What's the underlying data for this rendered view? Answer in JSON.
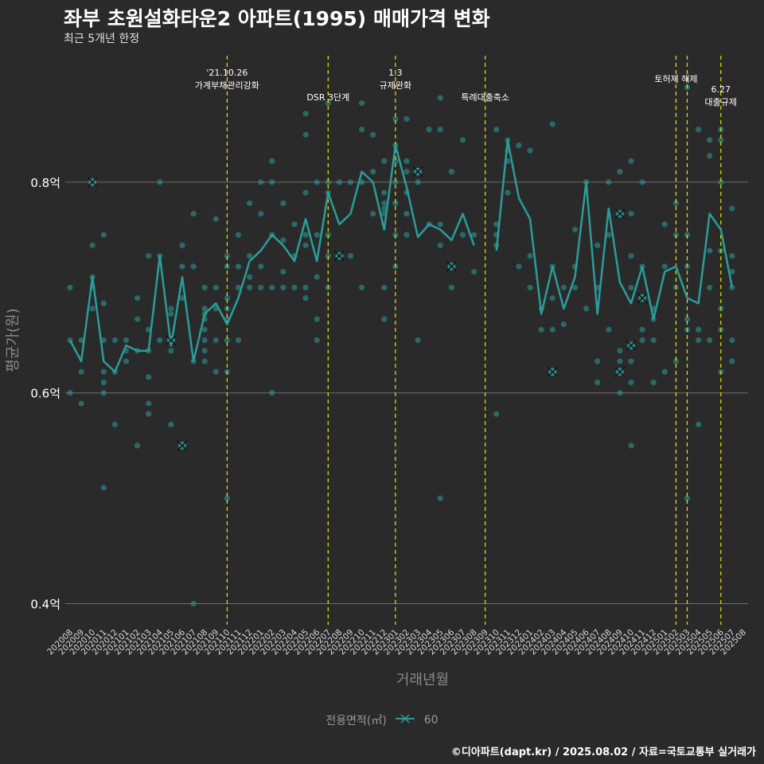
{
  "title": "좌부 초원설화타운2 아파트(1995) 매매가격 변화",
  "subtitle": "최근 5개년 한정",
  "caption": "©디아파트(dapt.kr) / 2025.08.02 / 자료=국토교통부 실거래가",
  "legend": {
    "title": "전용면적(㎡)",
    "label": "60"
  },
  "colors": {
    "series": "#2a9d99",
    "event_line": "#e8e600",
    "grid": "#6e6e6e",
    "background": "#2b2a2b"
  },
  "chart_data": {
    "type": "line",
    "title": "좌부 초원설화타운2 아파트(1995) 매매가격 변화",
    "subtitle": "최근 5개년 한정",
    "xlabel": "거래년월",
    "ylabel": "평균가(원)",
    "ylim": [
      0.38,
      0.92
    ],
    "yticks": [
      0.4,
      0.6,
      0.8
    ],
    "ytick_labels": [
      "0.4억",
      "0.6억",
      "0.8억"
    ],
    "grid": true,
    "legend_position": "bottom",
    "categories": [
      "202008",
      "202009",
      "202010",
      "202011",
      "202012",
      "202101",
      "202102",
      "202103",
      "202104",
      "202105",
      "202106",
      "202107",
      "202108",
      "202109",
      "202110",
      "202111",
      "202112",
      "202201",
      "202202",
      "202203",
      "202204",
      "202205",
      "202206",
      "202207",
      "202208",
      "202209",
      "202210",
      "202211",
      "202212",
      "202301",
      "202302",
      "202303",
      "202304",
      "202305",
      "202306",
      "202307",
      "202308",
      "202309",
      "202310",
      "202311",
      "202312",
      "202401",
      "202402",
      "202403",
      "202404",
      "202405",
      "202406",
      "202407",
      "202408",
      "202409",
      "202410",
      "202411",
      "202412",
      "202501",
      "202502",
      "202503",
      "202504",
      "202505",
      "202506",
      "202507",
      "202508"
    ],
    "series": [
      {
        "name": "60",
        "x": [
          "202008",
          "202009",
          "202010",
          "202011",
          "202012",
          "202101",
          "202102",
          "202103",
          "202104",
          "202105",
          "202106",
          "202107",
          "202108",
          "202109",
          "202110",
          "202111",
          "202112",
          "202201",
          "202202",
          "202203",
          "202204",
          "202205",
          "202206",
          "202207",
          "202208",
          "202209",
          "202210",
          "202211",
          "202212",
          "202301",
          "202302",
          "202303",
          "202304",
          "202305",
          "202306",
          "202307",
          "202308",
          "202310",
          "202311",
          "202312",
          "202401",
          "202402",
          "202403",
          "202404",
          "202405",
          "202406",
          "202407",
          "202408",
          "202409",
          "202410",
          "202411",
          "202412",
          "202501",
          "202502",
          "202503",
          "202504",
          "202505",
          "202506",
          "202507"
        ],
        "values": [
          0.65,
          0.63,
          0.71,
          0.63,
          0.62,
          0.645,
          0.64,
          0.64,
          0.73,
          0.645,
          0.71,
          0.63,
          0.675,
          0.685,
          0.665,
          0.69,
          0.725,
          0.735,
          0.75,
          0.74,
          0.725,
          0.765,
          0.725,
          0.79,
          0.76,
          0.77,
          0.81,
          0.8,
          0.755,
          0.835,
          0.795,
          0.748,
          0.76,
          0.755,
          0.745,
          0.77,
          0.74,
          0.735,
          0.84,
          0.785,
          0.765,
          0.675,
          0.72,
          0.68,
          0.71,
          0.8,
          0.675,
          0.775,
          0.705,
          0.685,
          0.72,
          0.67,
          0.715,
          0.72,
          0.69,
          0.685,
          0.77,
          0.755,
          0.7
        ]
      }
    ],
    "points": [
      [
        "202008",
        0.7
      ],
      [
        "202008",
        0.65
      ],
      [
        "202008",
        0.6
      ],
      [
        "202009",
        0.65
      ],
      [
        "202009",
        0.59
      ],
      [
        "202009",
        0.62
      ],
      [
        "202010",
        0.8
      ],
      [
        "202010",
        0.74
      ],
      [
        "202010",
        0.7
      ],
      [
        "202010",
        0.68
      ],
      [
        "202010",
        0.71
      ],
      [
        "202011",
        0.75
      ],
      [
        "202011",
        0.685
      ],
      [
        "202011",
        0.65
      ],
      [
        "202011",
        0.62
      ],
      [
        "202011",
        0.61
      ],
      [
        "202011",
        0.6
      ],
      [
        "202011",
        0.51
      ],
      [
        "202012",
        0.65
      ],
      [
        "202012",
        0.62
      ],
      [
        "202012",
        0.57
      ],
      [
        "202101",
        0.65
      ],
      [
        "202101",
        0.64
      ],
      [
        "202101",
        0.63
      ],
      [
        "202102",
        0.69
      ],
      [
        "202102",
        0.67
      ],
      [
        "202102",
        0.64
      ],
      [
        "202102",
        0.55
      ],
      [
        "202103",
        0.73
      ],
      [
        "202103",
        0.66
      ],
      [
        "202103",
        0.64
      ],
      [
        "202103",
        0.615
      ],
      [
        "202103",
        0.59
      ],
      [
        "202103",
        0.58
      ],
      [
        "202104",
        0.8
      ],
      [
        "202104",
        0.73
      ],
      [
        "202104",
        0.65
      ],
      [
        "202105",
        0.68
      ],
      [
        "202105",
        0.675
      ],
      [
        "202105",
        0.65
      ],
      [
        "202105",
        0.64
      ],
      [
        "202105",
        0.57
      ],
      [
        "202106",
        0.74
      ],
      [
        "202106",
        0.72
      ],
      [
        "202106",
        0.69
      ],
      [
        "202106",
        0.55
      ],
      [
        "202107",
        0.77
      ],
      [
        "202107",
        0.72
      ],
      [
        "202107",
        0.63
      ],
      [
        "202107",
        0.4
      ],
      [
        "202108",
        0.7
      ],
      [
        "202108",
        0.68
      ],
      [
        "202108",
        0.675
      ],
      [
        "202108",
        0.67
      ],
      [
        "202108",
        0.66
      ],
      [
        "202108",
        0.65
      ],
      [
        "202108",
        0.64
      ],
      [
        "202108",
        0.63
      ],
      [
        "202109",
        0.765
      ],
      [
        "202109",
        0.7
      ],
      [
        "202109",
        0.68
      ],
      [
        "202109",
        0.65
      ],
      [
        "202109",
        0.62
      ],
      [
        "202110",
        0.73
      ],
      [
        "202110",
        0.72
      ],
      [
        "202110",
        0.69
      ],
      [
        "202110",
        0.68
      ],
      [
        "202110",
        0.67
      ],
      [
        "202110",
        0.65
      ],
      [
        "202110",
        0.62
      ],
      [
        "202110",
        0.5
      ],
      [
        "202111",
        0.75
      ],
      [
        "202111",
        0.72
      ],
      [
        "202111",
        0.7
      ],
      [
        "202111",
        0.65
      ],
      [
        "202112",
        0.78
      ],
      [
        "202112",
        0.73
      ],
      [
        "202112",
        0.71
      ],
      [
        "202112",
        0.7
      ],
      [
        "202201",
        0.8
      ],
      [
        "202201",
        0.77
      ],
      [
        "202201",
        0.72
      ],
      [
        "202201",
        0.7
      ],
      [
        "202202",
        0.82
      ],
      [
        "202202",
        0.8
      ],
      [
        "202202",
        0.75
      ],
      [
        "202202",
        0.7
      ],
      [
        "202202",
        0.6
      ],
      [
        "202203",
        0.78
      ],
      [
        "202203",
        0.745
      ],
      [
        "202203",
        0.715
      ],
      [
        "202203",
        0.7
      ],
      [
        "202204",
        0.76
      ],
      [
        "202204",
        0.73
      ],
      [
        "202204",
        0.7
      ],
      [
        "202205",
        0.865
      ],
      [
        "202205",
        0.845
      ],
      [
        "202205",
        0.79
      ],
      [
        "202205",
        0.75
      ],
      [
        "202205",
        0.74
      ],
      [
        "202205",
        0.7
      ],
      [
        "202205",
        0.69
      ],
      [
        "202206",
        0.8
      ],
      [
        "202206",
        0.75
      ],
      [
        "202206",
        0.71
      ],
      [
        "202206",
        0.67
      ],
      [
        "202206",
        0.65
      ],
      [
        "202207",
        0.875
      ],
      [
        "202207",
        0.8
      ],
      [
        "202207",
        0.79
      ],
      [
        "202207",
        0.75
      ],
      [
        "202207",
        0.73
      ],
      [
        "202207",
        0.7
      ],
      [
        "202208",
        0.8
      ],
      [
        "202208",
        0.73
      ],
      [
        "202209",
        0.8
      ],
      [
        "202209",
        0.73
      ],
      [
        "202210",
        0.875
      ],
      [
        "202210",
        0.85
      ],
      [
        "202210",
        0.8
      ],
      [
        "202210",
        0.7
      ],
      [
        "202211",
        0.845
      ],
      [
        "202211",
        0.81
      ],
      [
        "202211",
        0.77
      ],
      [
        "202212",
        0.82
      ],
      [
        "202212",
        0.79
      ],
      [
        "202212",
        0.78
      ],
      [
        "202212",
        0.775
      ],
      [
        "202212",
        0.77
      ],
      [
        "202212",
        0.7
      ],
      [
        "202212",
        0.67
      ],
      [
        "202301",
        0.86
      ],
      [
        "202301",
        0.835
      ],
      [
        "202301",
        0.82
      ],
      [
        "202301",
        0.8
      ],
      [
        "202301",
        0.78
      ],
      [
        "202301",
        0.75
      ],
      [
        "202301",
        0.72
      ],
      [
        "202302",
        0.86
      ],
      [
        "202302",
        0.82
      ],
      [
        "202302",
        0.81
      ],
      [
        "202302",
        0.79
      ],
      [
        "202302",
        0.77
      ],
      [
        "202302",
        0.75
      ],
      [
        "202303",
        0.81
      ],
      [
        "202303",
        0.8
      ],
      [
        "202303",
        0.65
      ],
      [
        "202304",
        0.85
      ],
      [
        "202304",
        0.76
      ],
      [
        "202305",
        0.88
      ],
      [
        "202305",
        0.85
      ],
      [
        "202305",
        0.76
      ],
      [
        "202305",
        0.74
      ],
      [
        "202305",
        0.5
      ],
      [
        "202306",
        0.81
      ],
      [
        "202306",
        0.72
      ],
      [
        "202306",
        0.7
      ],
      [
        "202307",
        0.84
      ],
      [
        "202307",
        0.75
      ],
      [
        "202308",
        0.75
      ],
      [
        "202308",
        0.715
      ],
      [
        "202310",
        0.85
      ],
      [
        "202310",
        0.76
      ],
      [
        "202310",
        0.75
      ],
      [
        "202310",
        0.74
      ],
      [
        "202310",
        0.58
      ],
      [
        "202311",
        0.84
      ],
      [
        "202311",
        0.83
      ],
      [
        "202311",
        0.82
      ],
      [
        "202311",
        0.79
      ],
      [
        "202312",
        0.835
      ],
      [
        "202312",
        0.72
      ],
      [
        "202401",
        0.83
      ],
      [
        "202401",
        0.73
      ],
      [
        "202401",
        0.7
      ],
      [
        "202402",
        0.68
      ],
      [
        "202402",
        0.66
      ],
      [
        "202403",
        0.855
      ],
      [
        "202403",
        0.72
      ],
      [
        "202403",
        0.69
      ],
      [
        "202403",
        0.66
      ],
      [
        "202403",
        0.62
      ],
      [
        "202404",
        0.7
      ],
      [
        "202404",
        0.665
      ],
      [
        "202405",
        0.755
      ],
      [
        "202405",
        0.72
      ],
      [
        "202405",
        0.7
      ],
      [
        "202406",
        0.8
      ],
      [
        "202406",
        0.68
      ],
      [
        "202407",
        0.74
      ],
      [
        "202407",
        0.7
      ],
      [
        "202407",
        0.63
      ],
      [
        "202407",
        0.61
      ],
      [
        "202408",
        0.8
      ],
      [
        "202408",
        0.75
      ],
      [
        "202408",
        0.66
      ],
      [
        "202409",
        0.81
      ],
      [
        "202409",
        0.77
      ],
      [
        "202409",
        0.64
      ],
      [
        "202409",
        0.63
      ],
      [
        "202409",
        0.62
      ],
      [
        "202409",
        0.6
      ],
      [
        "202410",
        0.82
      ],
      [
        "202410",
        0.77
      ],
      [
        "202410",
        0.73
      ],
      [
        "202410",
        0.7
      ],
      [
        "202410",
        0.645
      ],
      [
        "202410",
        0.63
      ],
      [
        "202410",
        0.61
      ],
      [
        "202410",
        0.55
      ],
      [
        "202411",
        0.8
      ],
      [
        "202411",
        0.72
      ],
      [
        "202411",
        0.69
      ],
      [
        "202411",
        0.66
      ],
      [
        "202411",
        0.65
      ],
      [
        "202412",
        0.68
      ],
      [
        "202412",
        0.67
      ],
      [
        "202412",
        0.65
      ],
      [
        "202412",
        0.61
      ],
      [
        "202501",
        0.76
      ],
      [
        "202501",
        0.72
      ],
      [
        "202501",
        0.62
      ],
      [
        "202502",
        0.78
      ],
      [
        "202502",
        0.75
      ],
      [
        "202502",
        0.7
      ],
      [
        "202502",
        0.63
      ],
      [
        "202503",
        0.89
      ],
      [
        "202503",
        0.75
      ],
      [
        "202503",
        0.72
      ],
      [
        "202503",
        0.67
      ],
      [
        "202503",
        0.66
      ],
      [
        "202503",
        0.5
      ],
      [
        "202504",
        0.85
      ],
      [
        "202504",
        0.66
      ],
      [
        "202504",
        0.65
      ],
      [
        "202504",
        0.57
      ],
      [
        "202505",
        0.84
      ],
      [
        "202505",
        0.825
      ],
      [
        "202505",
        0.735
      ],
      [
        "202505",
        0.7
      ],
      [
        "202505",
        0.65
      ],
      [
        "202506",
        0.85
      ],
      [
        "202506",
        0.84
      ],
      [
        "202506",
        0.8
      ],
      [
        "202506",
        0.735
      ],
      [
        "202506",
        0.68
      ],
      [
        "202506",
        0.66
      ],
      [
        "202506",
        0.62
      ],
      [
        "202507",
        0.775
      ],
      [
        "202507",
        0.73
      ],
      [
        "202507",
        0.715
      ],
      [
        "202507",
        0.7
      ],
      [
        "202507",
        0.65
      ],
      [
        "202507",
        0.63
      ]
    ],
    "cross_marks": [
      [
        "202010",
        0.8
      ],
      [
        "202105",
        0.65
      ],
      [
        "202106",
        0.55
      ],
      [
        "202208",
        0.73
      ],
      [
        "202303",
        0.81
      ],
      [
        "202306",
        0.72
      ],
      [
        "202403",
        0.62
      ],
      [
        "202409",
        0.77
      ],
      [
        "202409",
        0.62
      ],
      [
        "202410",
        0.645
      ],
      [
        "202411",
        0.69
      ]
    ],
    "annotations": [
      {
        "x": "202110",
        "lines": [
          "'21.10.26",
          "가계부채관리강화"
        ]
      },
      {
        "x": "202207",
        "lines": [
          "DSR 3단계"
        ]
      },
      {
        "x": "202301",
        "lines": [
          "1.3",
          "규제완화"
        ]
      },
      {
        "x": "202309",
        "lines": [
          "특례대출축소"
        ]
      },
      {
        "x": "202502",
        "lines": [
          "토허제 해제"
        ]
      },
      {
        "x": "202503",
        "lines": []
      },
      {
        "x": "202506",
        "lines": [
          "6.27",
          "대출규제"
        ]
      }
    ]
  }
}
